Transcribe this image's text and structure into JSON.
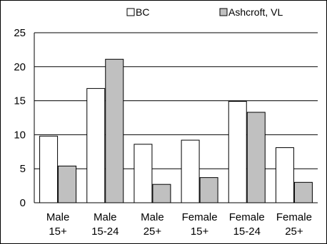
{
  "chart_data": {
    "type": "bar",
    "categories": [
      [
        "Male",
        "15+"
      ],
      [
        "Male",
        "15-24"
      ],
      [
        "Male",
        "25+"
      ],
      [
        "Female",
        "15+"
      ],
      [
        "Female",
        "15-24"
      ],
      [
        "Female",
        "25+"
      ]
    ],
    "series": [
      {
        "name": "BC",
        "values": [
          9.8,
          16.8,
          8.6,
          9.2,
          14.9,
          8.1
        ],
        "color": "#ffffff"
      },
      {
        "name": "Ashcroft, VL",
        "values": [
          5.4,
          21.1,
          2.7,
          3.7,
          13.3,
          3.0
        ],
        "color": "#c0c0c0"
      }
    ],
    "y_ticks": [
      "0",
      "5",
      "10",
      "15",
      "20",
      "25"
    ],
    "ylim": [
      0,
      25
    ],
    "grid": true,
    "legend_position": "top",
    "title": "",
    "xlabel": "",
    "ylabel": ""
  }
}
